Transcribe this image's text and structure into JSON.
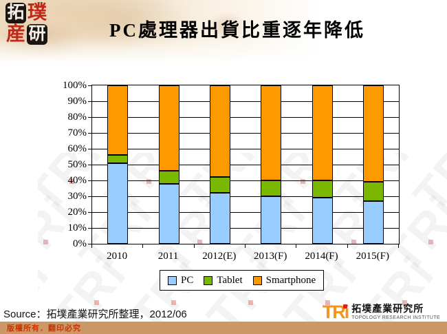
{
  "header": {
    "logo_chars": [
      "拓",
      "璞",
      "産",
      "研"
    ]
  },
  "chart_data": {
    "type": "bar",
    "stacked": true,
    "title": "PC處理器出貨比重逐年降低",
    "categories": [
      "2010",
      "2011",
      "2012(E)",
      "2013(F)",
      "2014(F)",
      "2015(F)"
    ],
    "series": [
      {
        "name": "PC",
        "color": "#99CCFF",
        "values": [
          51,
          38,
          32,
          30,
          29,
          27
        ]
      },
      {
        "name": "Tablet",
        "color": "#7AB800",
        "values": [
          5,
          8,
          10,
          10,
          11,
          12
        ]
      },
      {
        "name": "Smartphone",
        "color": "#FF9900",
        "values": [
          44,
          54,
          58,
          60,
          60,
          61
        ]
      }
    ],
    "ylim": [
      0,
      100
    ],
    "ytick_step": 10,
    "ytick_suffix": "%",
    "grid": true,
    "legend_position": "bottom"
  },
  "footer": {
    "source": "Source：拓墣產業研究所整理，2012/06",
    "copyright": "版權所有．翻印必究",
    "logo": {
      "mark": "TRi",
      "cn": "拓墣產業研究所",
      "en": "TOPOLOGY RESEARCH INSTITUTE"
    }
  },
  "watermark": {
    "text": "TRi"
  },
  "colors": {
    "pc": "#99CCFF",
    "tablet": "#7AB800",
    "smartphone": "#FF9900",
    "copyright_bar": "#CC9966",
    "copyright_text": "#CC3300",
    "tri_orange": "#F7941D"
  }
}
